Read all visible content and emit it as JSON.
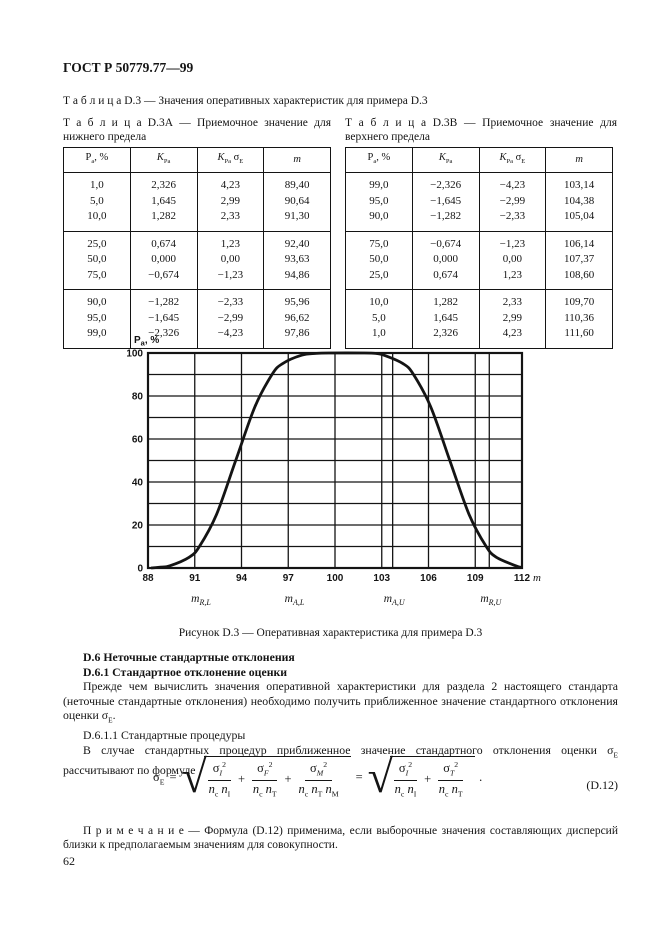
{
  "page": {
    "standard_code": "ГОСТ Р 50779.77—99",
    "page_number": "62"
  },
  "captions": {
    "table_d3": "Т а б л и ц а   D.3 — Значения оперативных характеристик для примера D.3",
    "table_d3a": "Т а б л и ц а   D.3А — Приемочное значение для нижнего предела",
    "table_d3b": "Т а б л и ц а   D.3В — Приемочное значение для верхнего предела",
    "figure": "Рисунок D.3 — Оперативная характеристика для примера D.3"
  },
  "tables": {
    "a": {
      "headers_html": [
        "P<sub>а</sub>, %",
        "<i>K</i><sub>Pа</sub>",
        "<i>K</i><sub>Pа</sub> σ<sub>E</sub>",
        "<i>m</i>"
      ],
      "groups": [
        [
          [
            "1,0",
            "2,326",
            "4,23",
            "89,40"
          ],
          [
            "5,0",
            "1,645",
            "2,99",
            "90,64"
          ],
          [
            "10,0",
            "1,282",
            "2,33",
            "91,30"
          ]
        ],
        [
          [
            "25,0",
            "0,674",
            "1,23",
            "92,40"
          ],
          [
            "50,0",
            "0,000",
            "0,00",
            "93,63"
          ],
          [
            "75,0",
            "−0,674",
            "−1,23",
            "94,86"
          ]
        ],
        [
          [
            "90,0",
            "−1,282",
            "−2,33",
            "95,96"
          ],
          [
            "95,0",
            "−1,645",
            "−2,99",
            "96,62"
          ],
          [
            "99,0",
            "−2,326",
            "−4,23",
            "97,86"
          ]
        ]
      ]
    },
    "b": {
      "headers_html": [
        "P<sub>а</sub>, %",
        "<i>K</i><sub>Pа</sub>",
        "<i>K</i><sub>Pа</sub> σ<sub>E</sub>",
        "<i>m</i>"
      ],
      "groups": [
        [
          [
            "99,0",
            "−2,326",
            "−4,23",
            "103,14"
          ],
          [
            "95,0",
            "−1,645",
            "−2,99",
            "104,38"
          ],
          [
            "90,0",
            "−1,282",
            "−2,33",
            "105,04"
          ]
        ],
        [
          [
            "75,0",
            "−0,674",
            "−1,23",
            "106,14"
          ],
          [
            "50,0",
            "0,000",
            "0,00",
            "107,37"
          ],
          [
            "25,0",
            "0,674",
            "1,23",
            "108,60"
          ]
        ],
        [
          [
            "10,0",
            "1,282",
            "2,33",
            "109,70"
          ],
          [
            "5,0",
            "1,645",
            "2,99",
            "110,36"
          ],
          [
            "1,0",
            "2,326",
            "4,23",
            "111,60"
          ]
        ]
      ]
    }
  },
  "chart_data": {
    "type": "line",
    "title": "Оперативная характеристика для примера D.3",
    "xlabel": "m",
    "ylabel_main": "P",
    "ylabel_sub": "а",
    "ylabel_rest": ", %",
    "xlim": [
      88,
      112
    ],
    "ylim": [
      0,
      100
    ],
    "x_ticks": [
      88,
      91,
      94,
      97,
      100,
      103,
      106,
      109,
      112
    ],
    "y_ticks": [
      0,
      20,
      40,
      60,
      80,
      100
    ],
    "grid_x_step": 3,
    "grid_y_step": 10,
    "grid": "on",
    "marker_lines_x": [
      103.7,
      109.9
    ],
    "marker_labels": [
      {
        "main": "m",
        "sub": "R,L",
        "x": 91.4
      },
      {
        "main": "m",
        "sub": "A,L",
        "x": 97.4
      },
      {
        "main": "m",
        "sub": "A,U",
        "x": 103.8
      },
      {
        "main": "m",
        "sub": "R,U",
        "x": 110.0
      }
    ],
    "series": [
      {
        "name": "OC curve Pa(m)",
        "points": [
          [
            88.2,
            0
          ],
          [
            88.8,
            0.4
          ],
          [
            89.4,
            1
          ],
          [
            90.64,
            5
          ],
          [
            91.3,
            10
          ],
          [
            92.4,
            25
          ],
          [
            93.63,
            50
          ],
          [
            94.86,
            75
          ],
          [
            95.96,
            90
          ],
          [
            96.62,
            95
          ],
          [
            97.86,
            99
          ],
          [
            98.8,
            99.8
          ],
          [
            99.6,
            100
          ],
          [
            101.9,
            100
          ],
          [
            102.6,
            99.8
          ],
          [
            103.14,
            99
          ],
          [
            104.38,
            95
          ],
          [
            105.04,
            90
          ],
          [
            106.14,
            75
          ],
          [
            107.37,
            50
          ],
          [
            108.6,
            25
          ],
          [
            109.7,
            10
          ],
          [
            110.36,
            5
          ],
          [
            111.6,
            1
          ],
          [
            112,
            0.2
          ]
        ]
      }
    ]
  },
  "sections": {
    "d6_title": "D.6 Неточные стандартные отклонения",
    "d61_title": "D.6.1 Стандартное отклонение оценки",
    "d61_para_html": "Прежде чем вычислить значения оперативной характеристики для раздела 2 настоящего стандарта (неточные стандартные отклонения) необходимо получить приближенное значение стандартного отклонения оценки σ<sub>E</sub>.",
    "d611_title": "D.6.1.1 Стандартные процедуры",
    "d611_para_html": "В случае стандартных процедур приближенное значение стандартного отклонения оценки σ<sub>E</sub> рассчитывают по формуле"
  },
  "formula": {
    "lhs_html": "σ<sub>E</sub>",
    "eq": "=",
    "plus": "+",
    "dot": ".",
    "radical_sign": "√",
    "terms1": [
      {
        "num": "σ<sub><i>I</i></sub><sup>2</sup>",
        "den": "<i>n</i><sub>c</sub> <i>n</i><sub>I</sub>"
      },
      {
        "num": "σ<sub><i>F</i></sub><sup>2</sup>",
        "den": "<i>n</i><sub>c</sub> <i>n</i><sub>T</sub>"
      },
      {
        "num": "σ<sub><i>M</i></sub><sup>2</sup>",
        "den": "<i>n</i><sub>c</sub> <i>n</i><sub>T</sub> <i>n</i><sub>M</sub>"
      }
    ],
    "terms2": [
      {
        "num": "σ<sub><i>I</i></sub><sup>2</sup>",
        "den": "<i>n</i><sub>c</sub> <i>n</i><sub>I</sub>"
      },
      {
        "num": "σ<sub><i>T</i></sub><sup>2</sup>",
        "den": "<i>n</i><sub>c</sub> <i>n</i><sub>T</sub>"
      }
    ],
    "number": "(D.12)"
  },
  "note_html": "П р и м е ч а н и е — Формула (D.12) применима, если выборочные значения составляющих дисперсий близки к предполагаемым значениям для совокупности."
}
